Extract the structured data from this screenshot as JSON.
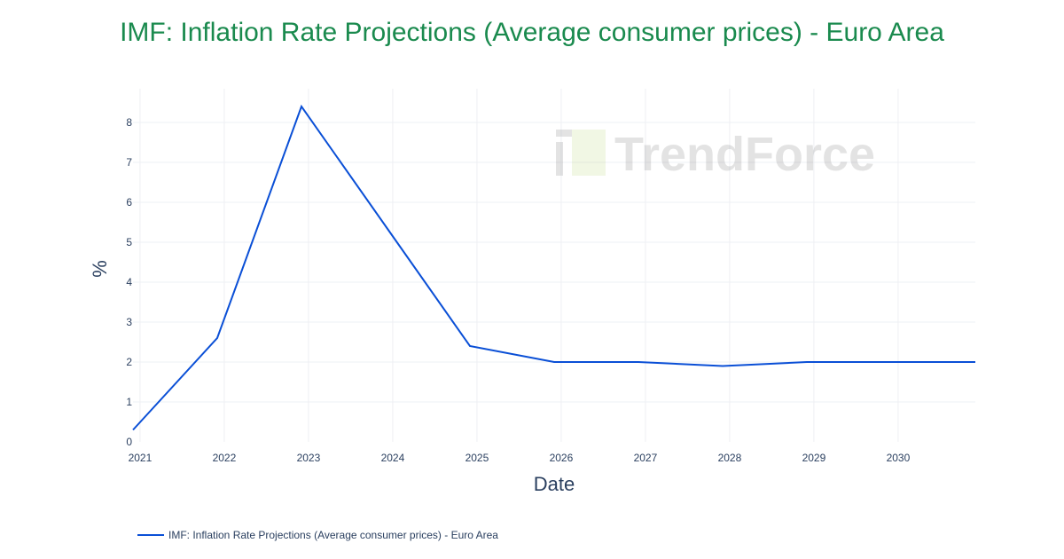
{
  "chart_data": {
    "type": "line",
    "title": "IMF: Inflation Rate Projections (Average consumer prices) - Euro Area",
    "xlabel": "Date",
    "ylabel": "%",
    "x_ticks": [
      "2021",
      "2022",
      "2023",
      "2024",
      "2025",
      "2026",
      "2027",
      "2028",
      "2029",
      "2030"
    ],
    "y_ticks": [
      "0",
      "1",
      "2",
      "3",
      "4",
      "5",
      "6",
      "7",
      "8"
    ],
    "ylim": [
      0,
      8.8
    ],
    "grid": true,
    "legend_position": "bottom-left",
    "watermark": "TrendForce",
    "series": [
      {
        "name": "IMF: Inflation Rate Projections (Average consumer prices) - Euro Area",
        "color": "#0a4fd6",
        "x": [
          "2020-12",
          "2021-12",
          "2022-12",
          "2023-12",
          "2024-12",
          "2025-12",
          "2026-12",
          "2027-12",
          "2028-12",
          "2029-12",
          "2030-12"
        ],
        "y": [
          0.3,
          2.6,
          8.4,
          5.4,
          2.4,
          2.0,
          2.0,
          1.9,
          2.0,
          2.0,
          2.0
        ]
      }
    ]
  }
}
